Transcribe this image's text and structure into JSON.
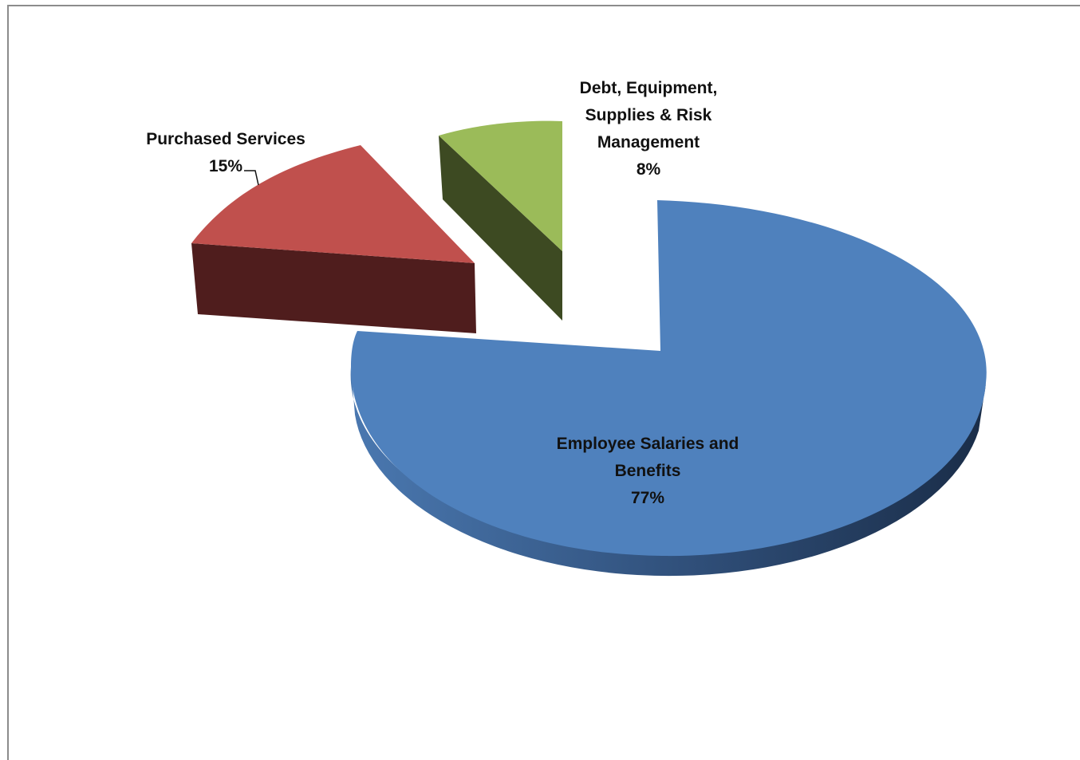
{
  "chart_data": {
    "type": "pie",
    "style": "3d-exploded",
    "slices": [
      {
        "label_lines": [
          "Employee Salaries and",
          "Benefits"
        ],
        "percent_label": "77%",
        "value": 77,
        "color": "#4F81BD"
      },
      {
        "label_lines": [
          "Debt, Equipment,",
          "Supplies & Risk",
          "Management"
        ],
        "percent_label": "8%",
        "value": 8,
        "color": "#9BBB59"
      },
      {
        "label_lines": [
          "Purchased Services"
        ],
        "percent_label": "15%",
        "value": 15,
        "color": "#C0504D"
      }
    ],
    "legend": "none",
    "data_labels": "category-and-percent"
  }
}
